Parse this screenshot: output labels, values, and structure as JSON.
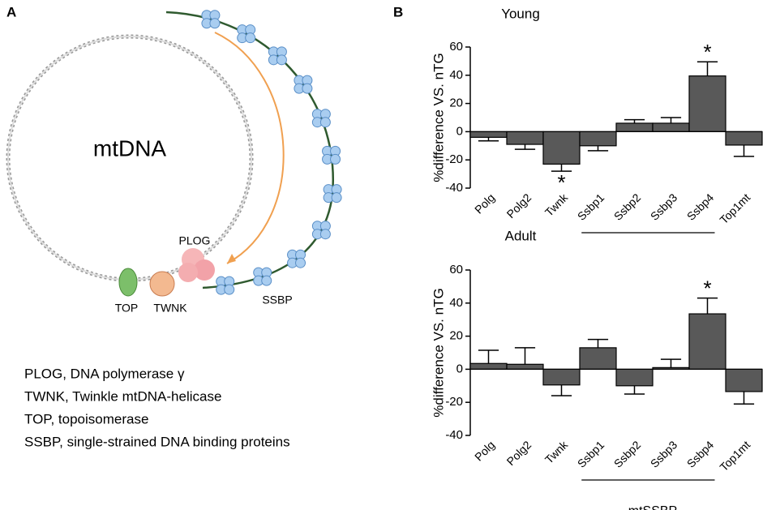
{
  "panel_labels": [
    "A",
    "B"
  ],
  "diagram": {
    "center_label": "mtDNA",
    "labels": [
      "PLOG",
      "TOP",
      "TWNK",
      "SSBP"
    ],
    "legend": [
      "PLOG, DNA polymerase γ",
      "TWNK, Twinkle mtDNA-helicase",
      "TOP, topoisomerase",
      "SSBP, single-strained DNA binding proteins"
    ]
  },
  "chart_data": [
    {
      "type": "bar",
      "title": "Young",
      "y_label": "%difference VS. nTG",
      "categories": [
        "Polg",
        "Polg2",
        "Twnk",
        "Ssbp1",
        "Ssbp2",
        "Ssbp3",
        "Ssbp4",
        "Top1mt"
      ],
      "values": [
        -4,
        -9,
        -23,
        -10,
        6,
        6,
        39.5,
        -9.5
      ],
      "errors": [
        2.5,
        3.5,
        5,
        3.5,
        2.5,
        4,
        10,
        8
      ],
      "annotations": [
        {
          "category": "Twnk",
          "text": "*"
        },
        {
          "category": "Ssbp4",
          "text": "*"
        }
      ],
      "group": {
        "categories": [
          "Ssbp1",
          "Ssbp4"
        ]
      },
      "color": "#595959",
      "ylim": [
        -40,
        60
      ],
      "yticks": [
        -40,
        -20,
        0,
        20,
        40,
        60
      ]
    },
    {
      "type": "bar",
      "title": "Adult",
      "y_label": "%difference VS. nTG",
      "categories": [
        "Polg",
        "Polg2",
        "Twnk",
        "Ssbp1",
        "Ssbp2",
        "Ssbp3",
        "Ssbp4",
        "Top1mt"
      ],
      "values": [
        3.5,
        3,
        -9.5,
        13,
        -10,
        1,
        33.5,
        -13.5
      ],
      "errors": [
        8,
        10,
        6.5,
        5,
        5,
        5,
        9.5,
        7.5
      ],
      "annotations": [
        {
          "category": "Ssbp4",
          "text": "*"
        }
      ],
      "group": {
        "label": "mtSSBP",
        "categories": [
          "Ssbp1",
          "Ssbp4"
        ]
      },
      "color": "#595959",
      "ylim": [
        -40,
        60
      ],
      "yticks": [
        -40,
        -20,
        0,
        20,
        40,
        60
      ]
    }
  ]
}
